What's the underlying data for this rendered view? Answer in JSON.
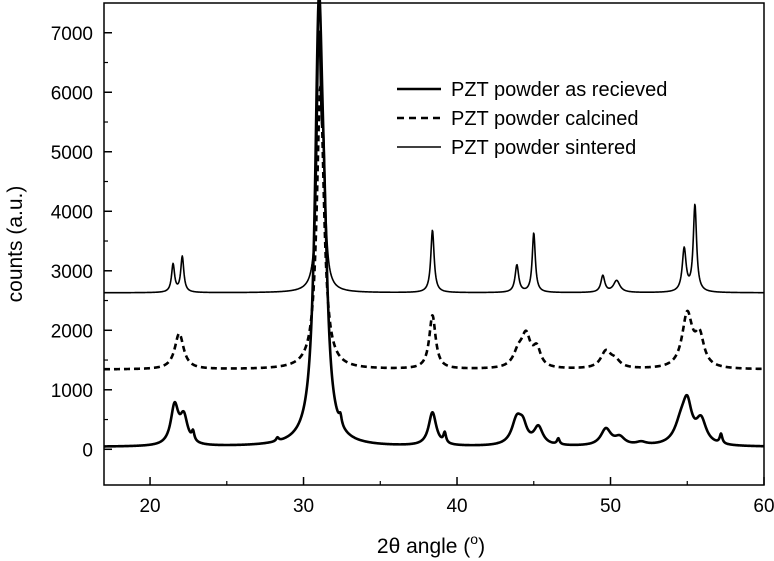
{
  "chart_data": {
    "type": "line",
    "xlabel_main": "2θ angle (",
    "xlabel_sup": "o",
    "xlabel_close": ")",
    "ylabel": "counts (a.u.)",
    "xlim": [
      17,
      60
    ],
    "ylim": [
      -600,
      7500
    ],
    "xticks": [
      20,
      30,
      40,
      50,
      60
    ],
    "yticks": [
      0,
      1000,
      2000,
      3000,
      4000,
      5000,
      6000,
      7000
    ],
    "grid": false,
    "legend_position": "top-right",
    "series": [
      {
        "name": "PZT powder as recieved",
        "style": "solid-thick",
        "color": "#000000",
        "baseline": 40,
        "peaks": [
          {
            "x": 21.6,
            "h": 650,
            "w": 0.3
          },
          {
            "x": 22.2,
            "h": 450,
            "w": 0.3
          },
          {
            "x": 22.8,
            "h": 150,
            "w": 0.1
          },
          {
            "x": 28.3,
            "h": 60,
            "w": 0.1
          },
          {
            "x": 31.0,
            "h": 6900,
            "w": 0.3
          },
          {
            "x": 31.35,
            "h": 1800,
            "w": 0.28
          },
          {
            "x": 32.4,
            "h": 150,
            "w": 0.1
          },
          {
            "x": 38.4,
            "h": 560,
            "w": 0.3
          },
          {
            "x": 39.2,
            "h": 170,
            "w": 0.1
          },
          {
            "x": 43.9,
            "h": 430,
            "w": 0.4
          },
          {
            "x": 44.3,
            "h": 250,
            "w": 0.3
          },
          {
            "x": 45.3,
            "h": 300,
            "w": 0.35
          },
          {
            "x": 46.6,
            "h": 100,
            "w": 0.1
          },
          {
            "x": 49.7,
            "h": 280,
            "w": 0.4
          },
          {
            "x": 50.6,
            "h": 130,
            "w": 0.4
          },
          {
            "x": 52.0,
            "h": 50,
            "w": 0.4
          },
          {
            "x": 54.6,
            "h": 350,
            "w": 0.5
          },
          {
            "x": 55.0,
            "h": 580,
            "w": 0.35
          },
          {
            "x": 55.9,
            "h": 400,
            "w": 0.4
          },
          {
            "x": 57.2,
            "h": 160,
            "w": 0.1
          }
        ]
      },
      {
        "name": "PZT powder calcined",
        "style": "dashed",
        "color": "#000000",
        "baseline": 1340,
        "peaks": [
          {
            "x": 21.9,
            "h": 600,
            "w": 0.35
          },
          {
            "x": 31.1,
            "h": 4750,
            "w": 0.28
          },
          {
            "x": 38.4,
            "h": 900,
            "w": 0.25
          },
          {
            "x": 44.0,
            "h": 250,
            "w": 0.4
          },
          {
            "x": 44.5,
            "h": 500,
            "w": 0.35
          },
          {
            "x": 45.2,
            "h": 300,
            "w": 0.3
          },
          {
            "x": 49.7,
            "h": 280,
            "w": 0.4
          },
          {
            "x": 50.3,
            "h": 120,
            "w": 0.4
          },
          {
            "x": 55.0,
            "h": 900,
            "w": 0.4
          },
          {
            "x": 55.8,
            "h": 500,
            "w": 0.35
          }
        ]
      },
      {
        "name": "PZT powder sintered",
        "style": "solid-thin",
        "color": "#000000",
        "baseline": 2630,
        "peaks": [
          {
            "x": 21.5,
            "h": 470,
            "w": 0.12
          },
          {
            "x": 22.1,
            "h": 600,
            "w": 0.12
          },
          {
            "x": 31.0,
            "h": 4000,
            "w": 0.15
          },
          {
            "x": 31.3,
            "h": 1950,
            "w": 0.15
          },
          {
            "x": 38.4,
            "h": 1050,
            "w": 0.13
          },
          {
            "x": 43.9,
            "h": 460,
            "w": 0.14
          },
          {
            "x": 45.0,
            "h": 1000,
            "w": 0.12
          },
          {
            "x": 49.5,
            "h": 280,
            "w": 0.15
          },
          {
            "x": 50.4,
            "h": 200,
            "w": 0.25
          },
          {
            "x": 54.8,
            "h": 720,
            "w": 0.15
          },
          {
            "x": 55.5,
            "h": 1460,
            "w": 0.13
          }
        ]
      }
    ]
  }
}
